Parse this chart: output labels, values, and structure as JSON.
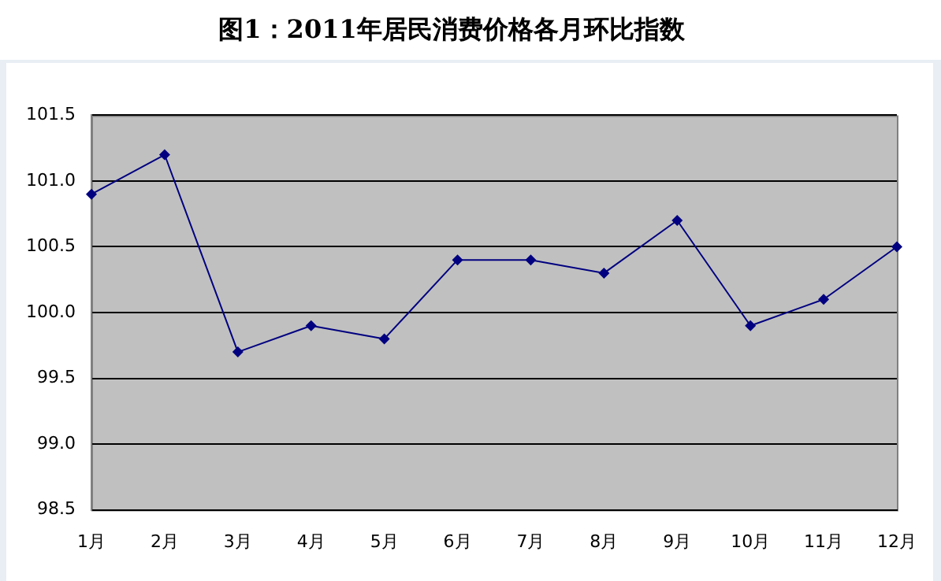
{
  "chart_data": {
    "type": "line",
    "title": "图1：2011年居民消费价格各月环比指数",
    "categories": [
      "1月",
      "2月",
      "3月",
      "4月",
      "5月",
      "6月",
      "7月",
      "8月",
      "9月",
      "10月",
      "11月",
      "12月"
    ],
    "series": [
      {
        "color": "#000080",
        "values": [
          100.9,
          101.2,
          99.7,
          99.9,
          99.8,
          100.4,
          100.4,
          100.3,
          100.7,
          99.9,
          100.1,
          100.5
        ]
      }
    ],
    "ylim": [
      98.5,
      101.5
    ],
    "yticks": [
      {
        "value": 98.5,
        "label": "98.5"
      },
      {
        "value": 99,
        "label": "99.0"
      },
      {
        "value": 99.5,
        "label": "99.5"
      },
      {
        "value": 100,
        "label": "100.0"
      },
      {
        "value": 100.5,
        "label": "100.5"
      },
      {
        "value": 101,
        "label": "101.0"
      },
      {
        "value": 101.5,
        "label": "101.5"
      }
    ],
    "grid": "y",
    "legend": false,
    "marker": "diamond",
    "line_style": "solid"
  }
}
